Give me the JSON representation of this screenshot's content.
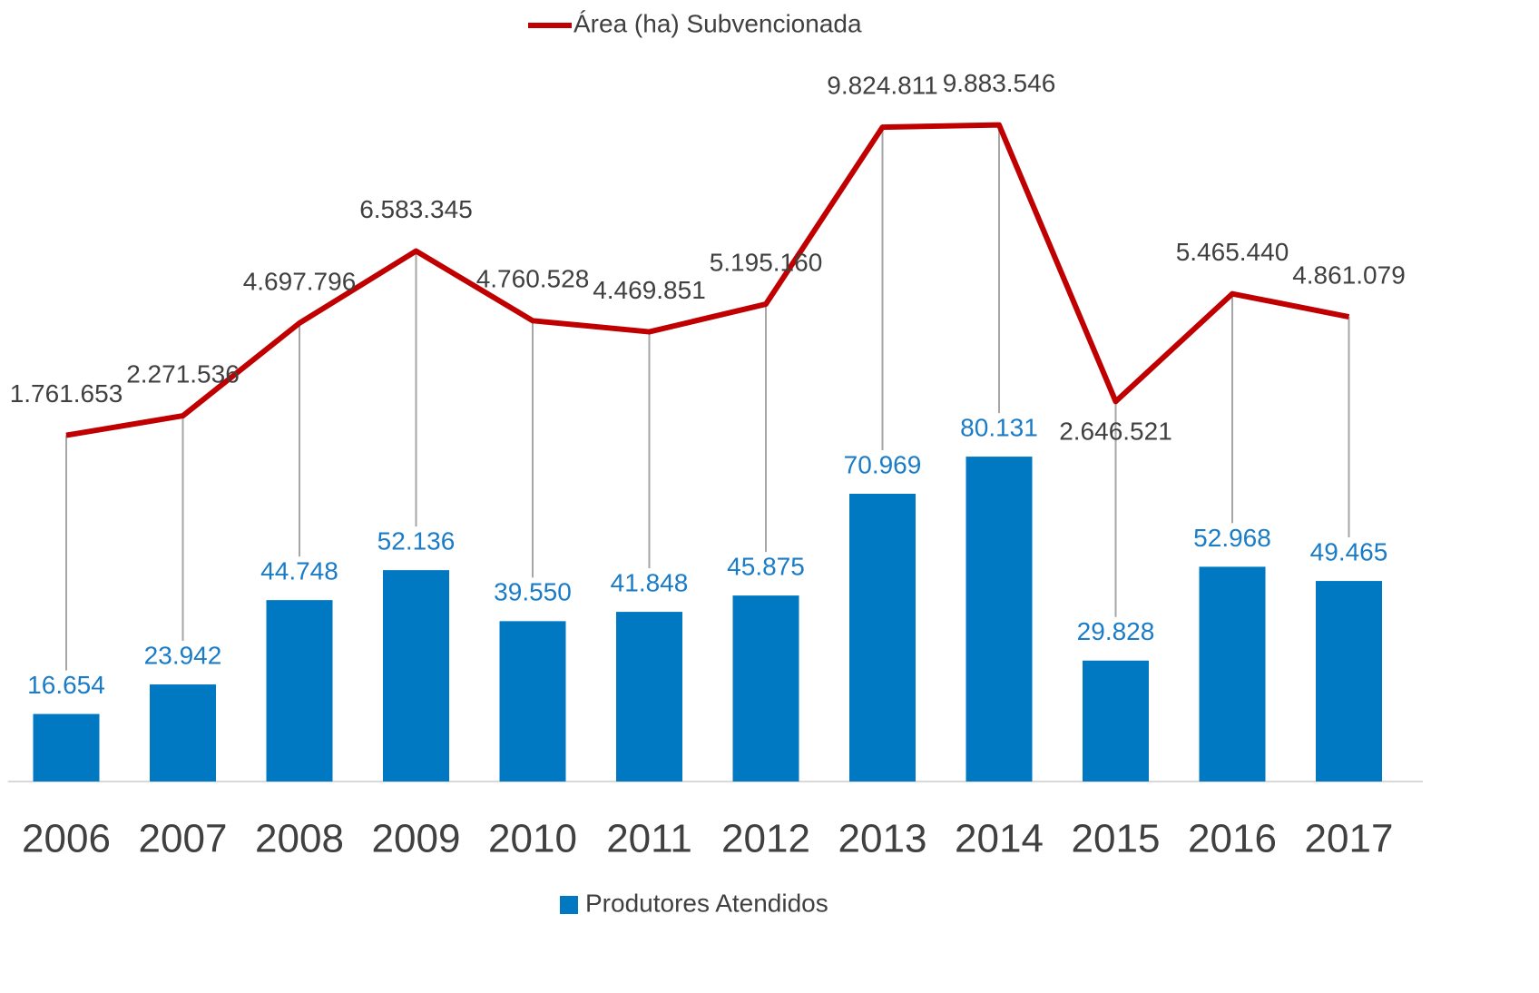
{
  "chart_data": {
    "type": "bar-line",
    "categories": [
      "2006",
      "2007",
      "2008",
      "2009",
      "2010",
      "2011",
      "2012",
      "2013",
      "2014",
      "2015",
      "2016",
      "2017"
    ],
    "series": [
      {
        "name": "Produtores Atendidos",
        "type": "bar",
        "color": "#0079c2",
        "values": [
          16654,
          23942,
          44748,
          52136,
          39550,
          41848,
          45875,
          70969,
          80131,
          29828,
          52968,
          49465
        ],
        "value_labels": [
          "16.654",
          "23.942",
          "44.748",
          "52.136",
          "39.550",
          "41.848",
          "45.875",
          "70.969",
          "80.131",
          "29.828",
          "52.968",
          "49.465"
        ]
      },
      {
        "name": "Área (ha) Subvencionada",
        "type": "line",
        "axis": "y2",
        "color": "#c00000",
        "values": [
          1761653,
          2271536,
          4697796,
          6583345,
          4760528,
          4469851,
          5195160,
          9824811,
          9883546,
          2646521,
          5465440,
          4861079
        ],
        "value_labels": [
          "1.761.653",
          "2.271.536",
          "4.697.796",
          "6.583.345",
          "4.760.528",
          "4.469.851",
          "5.195.160",
          "9.824.811",
          "9.883.546",
          "2.646.521",
          "5.465.440",
          "4.861.079"
        ]
      }
    ],
    "ylim": [
      0,
      180000
    ],
    "y2lim": [
      -7300000,
      11800000
    ]
  }
}
